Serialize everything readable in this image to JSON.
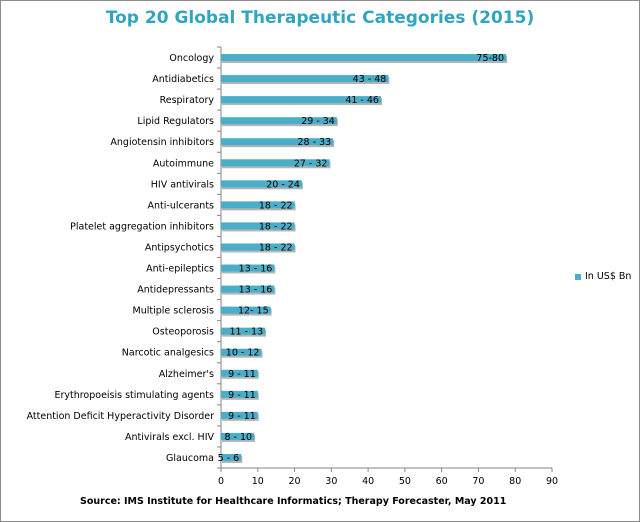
{
  "chart_data": {
    "type": "bar",
    "orientation": "horizontal",
    "title": "Top 20 Global Therapeutic Categories (2015)",
    "source": "Source: IMS Institute for Healthcare Informatics; Therapy Forecaster, May 2011",
    "xlim": [
      0,
      90
    ],
    "xticks": [
      0,
      10,
      20,
      30,
      40,
      50,
      60,
      70,
      80,
      90
    ],
    "grid": false,
    "legend_position": "right",
    "bar_color": "#4aaec8",
    "series": [
      {
        "name": "In US$ Bn",
        "categories": [
          "Oncology",
          "Antidiabetics",
          "Respiratory",
          "Lipid Regulators",
          "Angiotensin inhibitors",
          "Autoimmune",
          "HIV antivirals",
          "Anti-ulcerants",
          "Platelet aggregation inhibitors",
          "Antipsychotics",
          "Anti-epileptics",
          "Antidepressants",
          "Multiple sclerosis",
          "Osteoporosis",
          "Narcotic analgesics",
          "Alzheimer's",
          "Erythropoeisis stimulating agents",
          "Attention Deficit Hyperactivity Disorder",
          "Antivirals excl. HIV",
          "Glaucoma"
        ],
        "values": [
          77.5,
          45.5,
          43.5,
          31.5,
          30.5,
          29.5,
          22,
          20,
          20,
          20,
          14.5,
          14.5,
          13.5,
          12,
          11,
          10,
          10,
          10,
          9,
          5.5
        ],
        "data_labels": [
          "75-80",
          "43 - 48",
          "41 - 46",
          "29 - 34",
          "28 - 33",
          "27 - 32",
          "20 - 24",
          "18 - 22",
          "18 - 22",
          "18 - 22",
          "13 - 16",
          "13 - 16",
          "12- 15",
          "11 - 13",
          "10 - 12",
          "9 - 11",
          "9 - 11",
          "9 - 11",
          "8 - 10",
          "5 - 6"
        ]
      }
    ]
  }
}
